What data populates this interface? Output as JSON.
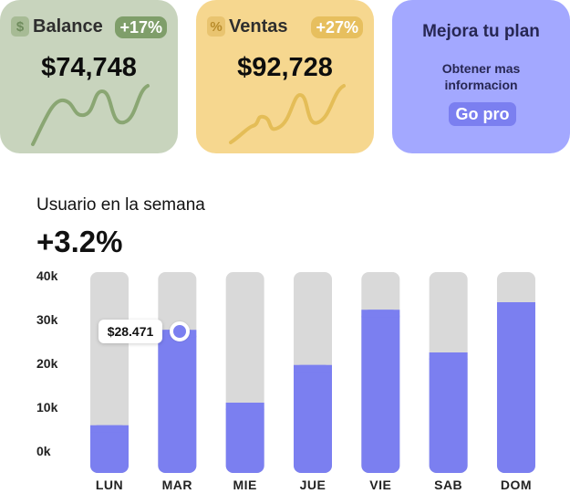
{
  "cards": {
    "balance": {
      "icon": "dollar-icon",
      "icon_glyph": "$",
      "label": "Balance",
      "change": "+17%",
      "amount": "$74,748",
      "color": "#c8d4bd",
      "line_color": "#8aa673"
    },
    "sales": {
      "icon": "percent-icon",
      "icon_glyph": "%",
      "label": "Ventas",
      "change": "+27%",
      "amount": "$92,728",
      "color": "#f6d78f",
      "line_color": "#e4bd57"
    },
    "plan": {
      "title": "Mejora tu plan",
      "subtitle": "Obtener mas informacion",
      "button_label": "Go pro",
      "color": "#a3a8ff"
    }
  },
  "weekly": {
    "title": "Usuario en la semana",
    "change": "+3.2%",
    "tooltip": "$28.471",
    "tooltip_day": "MAR"
  },
  "chart_data": {
    "type": "bar",
    "categories": [
      "LUN",
      "MAR",
      "MIE",
      "JUE",
      "VIE",
      "SAB",
      "DOM"
    ],
    "values": [
      9.5,
      28.5,
      14,
      21.5,
      32.5,
      24,
      34
    ],
    "yticks": [
      "40k",
      "30k",
      "20k",
      "10k",
      "0k"
    ],
    "ylim": [
      0,
      40
    ],
    "bar_color": "#7b7ff0",
    "track_color": "#d9d9d9"
  }
}
